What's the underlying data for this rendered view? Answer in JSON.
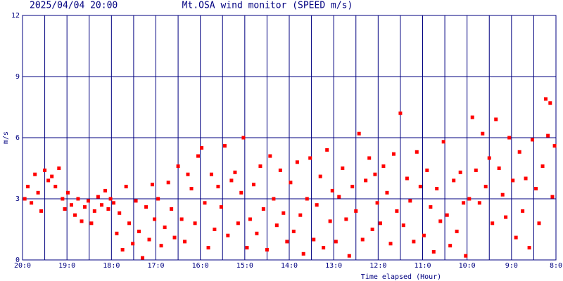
{
  "chart_data": {
    "type": "scatter",
    "timestamp": "2025/04/04 20:00",
    "title": "Mt.OSA wind monitor (SPEED m/s)",
    "y_label": "m/s",
    "x_label": "Time elapsed (Hour)",
    "color": "#ff0000",
    "grid": true,
    "xlim": [
      0,
      12
    ],
    "ylim": [
      0,
      12
    ],
    "yticks": [
      0,
      3,
      6,
      9,
      12
    ],
    "xticks": [
      {
        "value": 0,
        "label": "20:0"
      },
      {
        "value": 1,
        "label": "19:0"
      },
      {
        "value": 2,
        "label": "18:0"
      },
      {
        "value": 3,
        "label": "17:0"
      },
      {
        "value": 4,
        "label": "16:0"
      },
      {
        "value": 5,
        "label": "15:0"
      },
      {
        "value": 6,
        "label": "14:0"
      },
      {
        "value": 7,
        "label": "13:0"
      },
      {
        "value": 8,
        "label": "12:0"
      },
      {
        "value": 9,
        "label": "11:0"
      },
      {
        "value": 10,
        "label": "10:0"
      },
      {
        "value": 11,
        "label": "9:0"
      },
      {
        "value": 12,
        "label": "8:0"
      }
    ],
    "x": [
      0.05,
      0.12,
      0.2,
      0.28,
      0.35,
      0.42,
      0.5,
      0.58,
      0.66,
      0.74,
      0.82,
      0.9,
      0.95,
      1.02,
      1.1,
      1.18,
      1.25,
      1.33,
      1.4,
      1.48,
      1.55,
      1.62,
      1.7,
      1.78,
      1.86,
      1.93,
      1.98,
      2.05,
      2.12,
      2.18,
      2.25,
      2.33,
      2.4,
      2.48,
      2.55,
      2.62,
      2.7,
      2.78,
      2.85,
      2.92,
      2.97,
      3.05,
      3.12,
      3.2,
      3.28,
      3.35,
      3.42,
      3.5,
      3.58,
      3.65,
      3.72,
      3.8,
      3.88,
      3.95,
      4.03,
      4.1,
      4.18,
      4.25,
      4.32,
      4.4,
      4.47,
      4.55,
      4.62,
      4.7,
      4.78,
      4.85,
      4.92,
      4.97,
      5.05,
      5.12,
      5.2,
      5.27,
      5.35,
      5.42,
      5.5,
      5.57,
      5.65,
      5.72,
      5.8,
      5.87,
      5.95,
      6.03,
      6.1,
      6.18,
      6.25,
      6.32,
      6.4,
      6.47,
      6.55,
      6.62,
      6.7,
      6.77,
      6.85,
      6.92,
      6.97,
      7.05,
      7.12,
      7.2,
      7.28,
      7.35,
      7.42,
      7.5,
      7.57,
      7.65,
      7.72,
      7.8,
      7.87,
      7.93,
      7.98,
      8.05,
      8.12,
      8.2,
      8.28,
      8.35,
      8.42,
      8.5,
      8.57,
      8.65,
      8.72,
      8.8,
      8.87,
      8.95,
      9.03,
      9.1,
      9.18,
      9.25,
      9.32,
      9.4,
      9.47,
      9.55,
      9.62,
      9.7,
      9.77,
      9.85,
      9.92,
      9.97,
      10.05,
      10.12,
      10.2,
      10.28,
      10.35,
      10.42,
      10.5,
      10.57,
      10.65,
      10.72,
      10.8,
      10.87,
      10.95,
      11.03,
      11.1,
      11.18,
      11.25,
      11.32,
      11.4,
      11.47,
      11.55,
      11.62,
      11.7,
      11.77,
      11.82,
      11.87,
      11.92,
      11.97
    ],
    "values": [
      3.0,
      3.6,
      2.8,
      4.2,
      3.3,
      2.4,
      4.4,
      3.9,
      4.1,
      3.6,
      4.5,
      3.0,
      2.5,
      3.3,
      2.7,
      2.2,
      3.0,
      1.9,
      2.6,
      2.9,
      1.8,
      2.4,
      3.1,
      2.7,
      3.4,
      2.5,
      3.0,
      2.8,
      1.3,
      2.3,
      0.5,
      3.6,
      1.8,
      0.8,
      2.9,
      1.4,
      0.1,
      2.6,
      1.0,
      3.7,
      2.0,
      3.0,
      0.7,
      1.6,
      3.8,
      2.5,
      1.1,
      4.6,
      2.0,
      0.9,
      4.2,
      3.5,
      1.8,
      5.1,
      5.5,
      2.8,
      0.6,
      4.2,
      1.5,
      3.6,
      2.6,
      5.6,
      1.2,
      3.9,
      4.3,
      1.8,
      3.3,
      6.0,
      0.6,
      2.0,
      3.7,
      1.3,
      4.6,
      2.5,
      0.5,
      5.1,
      3.0,
      1.7,
      4.4,
      2.3,
      0.9,
      3.8,
      1.4,
      4.8,
      2.2,
      0.3,
      3.0,
      5.0,
      1.0,
      2.7,
      4.1,
      0.6,
      5.4,
      1.9,
      3.4,
      0.9,
      3.1,
      4.5,
      2.0,
      0.2,
      3.6,
      2.4,
      6.2,
      1.0,
      3.9,
      5.0,
      1.5,
      4.2,
      2.8,
      1.8,
      4.6,
      3.3,
      0.8,
      5.2,
      2.4,
      7.2,
      1.7,
      4.0,
      2.9,
      0.9,
      5.3,
      3.6,
      1.2,
      4.4,
      2.6,
      0.4,
      3.5,
      1.9,
      5.8,
      2.2,
      0.7,
      3.9,
      1.4,
      4.3,
      2.8,
      0.2,
      3.0,
      7.0,
      4.4,
      2.8,
      6.2,
      3.6,
      5.0,
      1.8,
      6.9,
      4.5,
      3.2,
      2.1,
      6.0,
      3.9,
      1.1,
      5.3,
      2.4,
      4.0,
      0.6,
      5.9,
      3.5,
      1.8,
      4.6,
      7.9,
      6.1,
      7.7,
      3.1,
      5.6
    ]
  }
}
